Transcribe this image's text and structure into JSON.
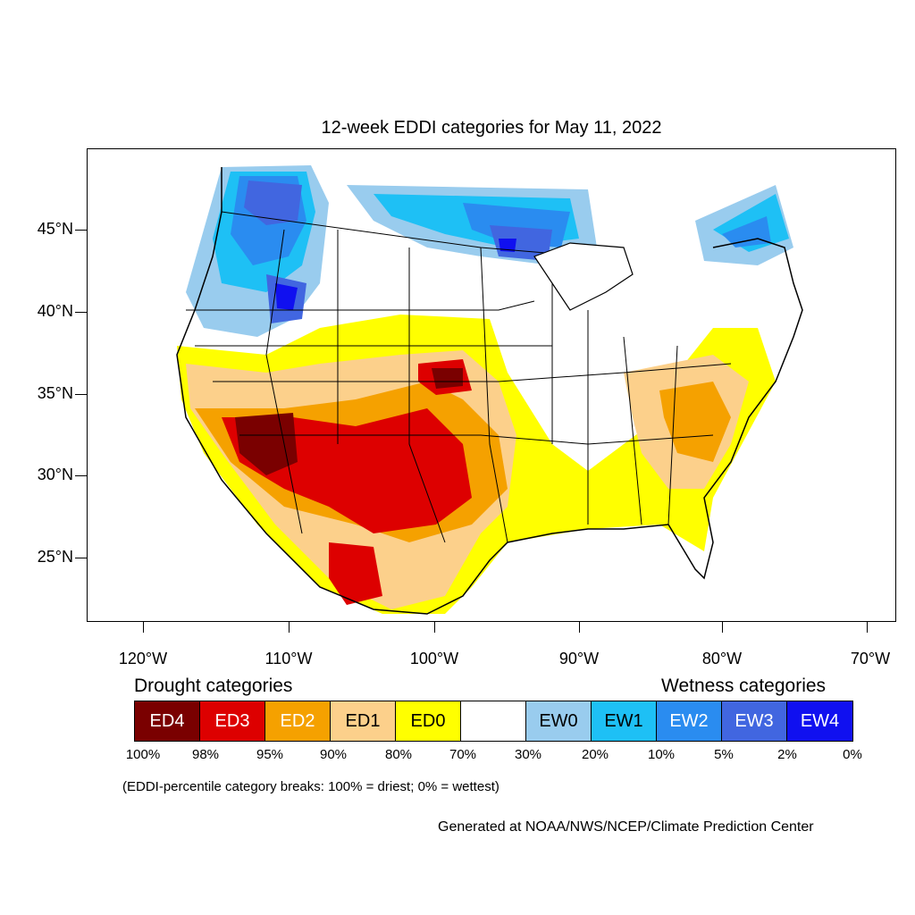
{
  "title": "12-week EDDI categories for May 11, 2022",
  "lat_labels": [
    "45°N",
    "40°N",
    "35°N",
    "30°N",
    "25°N"
  ],
  "lon_labels": [
    "120°W",
    "110°W",
    "100°W",
    "90°W",
    "80°W",
    "70°W"
  ],
  "drought_title": "Drought categories",
  "wetness_title": "Wetness categories",
  "categories": [
    {
      "label": "ED4",
      "color": "#7a0000",
      "text_color": "#ffffff"
    },
    {
      "label": "ED3",
      "color": "#dd0000",
      "text_color": "#ffffff"
    },
    {
      "label": "ED2",
      "color": "#f5a100",
      "text_color": "#ffffff"
    },
    {
      "label": "ED1",
      "color": "#fcd08b",
      "text_color": "#000000"
    },
    {
      "label": "ED0",
      "color": "#ffff00",
      "text_color": "#000000"
    },
    {
      "label": "",
      "color": "#ffffff",
      "text_color": "#000000"
    },
    {
      "label": "EW0",
      "color": "#99ccee",
      "text_color": "#000000"
    },
    {
      "label": "EW1",
      "color": "#1ec0f5",
      "text_color": "#000000"
    },
    {
      "label": "EW2",
      "color": "#2a8cf0",
      "text_color": "#ffffff"
    },
    {
      "label": "EW3",
      "color": "#4166e0",
      "text_color": "#ffffff"
    },
    {
      "label": "EW4",
      "color": "#1010f0",
      "text_color": "#ffffff"
    }
  ],
  "percentiles": [
    "100%",
    "98%",
    "95%",
    "90%",
    "80%",
    "70%",
    "30%",
    "20%",
    "10%",
    "5%",
    "2%",
    "0%"
  ],
  "note": "(EDDI-percentile category breaks: 100% = driest; 0% = wettest)",
  "credit": "Generated at NOAA/NWS/NCEP/Climate Prediction Center"
}
